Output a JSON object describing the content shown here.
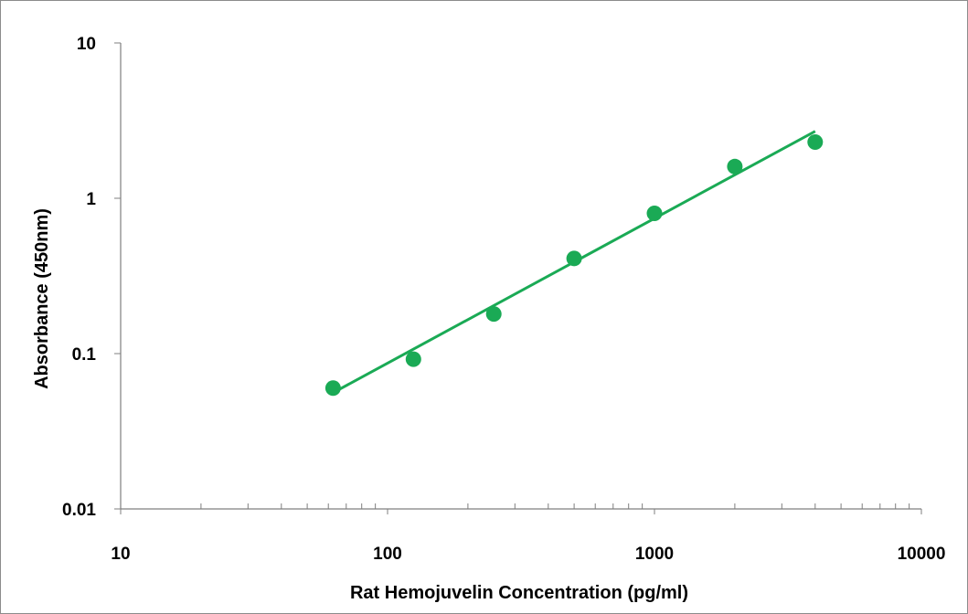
{
  "chart_data": {
    "type": "scatter",
    "xlabel": "Rat Hemojuvelin Concentration (pg/ml)",
    "ylabel": "Absorbance (450nm)",
    "xscale": "log",
    "yscale": "log",
    "xlim": [
      10,
      10000
    ],
    "ylim": [
      0.01,
      10
    ],
    "x_ticks": [
      "10",
      "100",
      "1000",
      "10000"
    ],
    "y_ticks": [
      "0.01",
      "0.1",
      "1",
      "10"
    ],
    "grid": false,
    "legend": "none",
    "series": [
      {
        "type": "scatter",
        "color": "#1aaa55",
        "points": [
          {
            "x": 62.5,
            "y": 0.06
          },
          {
            "x": 125,
            "y": 0.092
          },
          {
            "x": 250,
            "y": 0.18
          },
          {
            "x": 500,
            "y": 0.41
          },
          {
            "x": 1000,
            "y": 0.8
          },
          {
            "x": 2000,
            "y": 1.6
          },
          {
            "x": 4000,
            "y": 2.3
          }
        ]
      },
      {
        "type": "line",
        "color": "#1aaa55",
        "points": [
          {
            "x": 62.5,
            "y": 0.056
          },
          {
            "x": 4000,
            "y": 2.7
          }
        ]
      }
    ]
  }
}
